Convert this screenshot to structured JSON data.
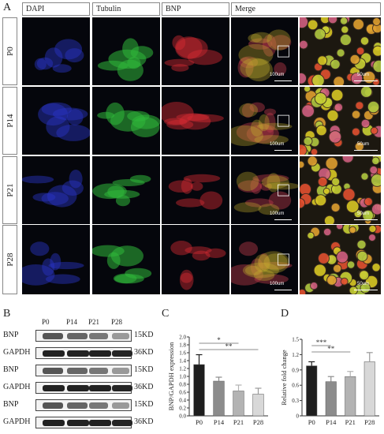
{
  "panelA": {
    "letter": "A",
    "channels": [
      "DAPI",
      "Tubulin",
      "BNP",
      "Merge"
    ],
    "rows": [
      "P0",
      "P14",
      "P21",
      "P28"
    ],
    "scale_main": "100um",
    "scale_zoom": "50um"
  },
  "panelB": {
    "letter": "B",
    "lanes": [
      "P0",
      "P14",
      "P21",
      "P28"
    ],
    "blots": [
      {
        "protein": "BNP",
        "kd": "15KD"
      },
      {
        "protein": "GAPDH",
        "kd": "36KD"
      },
      {
        "protein": "BNP",
        "kd": "15KD"
      },
      {
        "protein": "GAPDH",
        "kd": "36KD"
      },
      {
        "protein": "BNP",
        "kd": "15KD"
      },
      {
        "protein": "GAPDH",
        "kd": "36KD"
      }
    ]
  },
  "chart_data": [
    {
      "panel": "C",
      "type": "bar",
      "categories": [
        "P0",
        "P14",
        "P21",
        "P28"
      ],
      "values": [
        1.3,
        0.88,
        0.63,
        0.55
      ],
      "errors": [
        0.25,
        0.1,
        0.15,
        0.15
      ],
      "colors": [
        "#1e1e1e",
        "#8c8c8c",
        "#b3b3b3",
        "#d8d8d8"
      ],
      "ylabel": "BNP/GAPDH expression",
      "ylim": [
        0,
        2.0
      ],
      "yticks": [
        "0.0",
        "0.2",
        "0.4",
        "0.6",
        "0.8",
        "1.0",
        "1.2",
        "1.4",
        "1.6",
        "1.8",
        "2.0"
      ],
      "significance": [
        {
          "from": "P0",
          "to": "P21",
          "label": "*"
        },
        {
          "from": "P0",
          "to": "P28",
          "label": "**"
        }
      ]
    },
    {
      "panel": "D",
      "type": "bar",
      "categories": [
        "P0",
        "P14",
        "P21",
        "P28"
      ],
      "values": [
        0.98,
        0.67,
        0.77,
        1.06
      ],
      "errors": [
        0.08,
        0.1,
        0.1,
        0.18
      ],
      "colors": [
        "#1e1e1e",
        "#8c8c8c",
        "#b3b3b3",
        "#d8d8d8"
      ],
      "ylabel": "Relative fold change",
      "ylim": [
        0,
        1.5
      ],
      "yticks": [
        "0",
        "0.3",
        "0.6",
        "0.9",
        "1.2",
        "1.5"
      ],
      "significance": [
        {
          "from": "P0",
          "to": "P14",
          "label": "***"
        },
        {
          "from": "P0",
          "to": "P21",
          "label": "**"
        }
      ]
    }
  ]
}
